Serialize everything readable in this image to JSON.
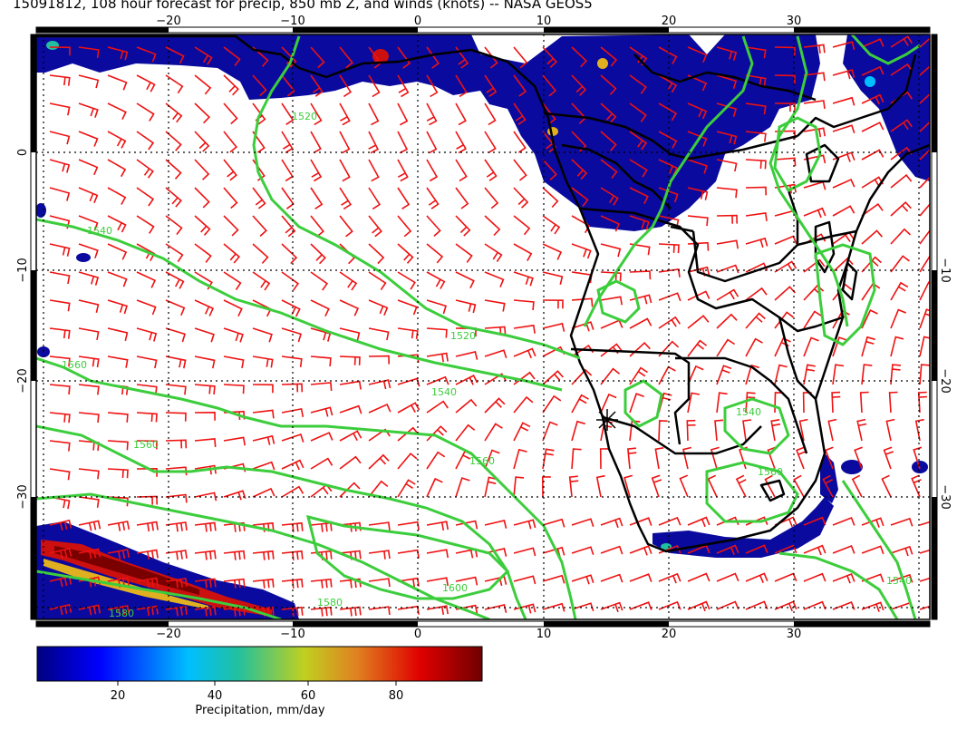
{
  "header": {
    "title": "15091812, 108 hour forecast for precip, 850 mb Z, and winds (knots) -- NASA GEOS5"
  },
  "map": {
    "lon_ticks_bottom": [
      "−20",
      "−10",
      "0",
      "10",
      "20",
      "30"
    ],
    "lon_ticks_top": [
      "−20",
      "−10",
      "0",
      "10",
      "20",
      "30"
    ],
    "lat_ticks_left": [
      "0",
      "−10",
      "−20",
      "−30"
    ],
    "lat_ticks_right": [
      "−10",
      "−20",
      "−30"
    ],
    "contour_labels": [
      "1520",
      "1540",
      "1520",
      "1560",
      "1540",
      "1560",
      "1560",
      "1580",
      "1600",
      "1540",
      "1540",
      "1560",
      "1580"
    ],
    "colors": {
      "precip_low": "#0a0a9e",
      "contour": "#3ccd3c",
      "wind_barb": "#ee1111",
      "coast": "#000000",
      "grid": "#000000"
    }
  },
  "colorbar": {
    "ticks": [
      "20",
      "40",
      "60",
      "80"
    ],
    "title": "Precipitation, mm/day",
    "stops": [
      "#000080",
      "#0000ff",
      "#00bfff",
      "#20c0a0",
      "#c0d020",
      "#e08020",
      "#e00000",
      "#700000"
    ]
  }
}
